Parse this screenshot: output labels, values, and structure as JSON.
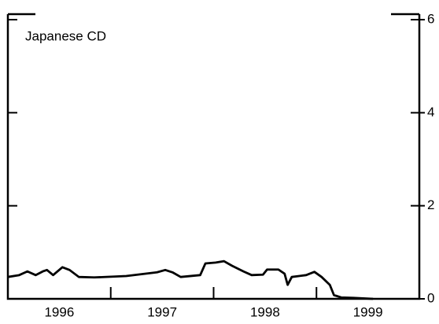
{
  "chart_data": {
    "type": "line",
    "annotation": "Japanese CD",
    "x": [
      1996.0,
      1996.11,
      1996.19,
      1996.27,
      1996.34,
      1996.38,
      1996.44,
      1996.53,
      1996.6,
      1996.69,
      1996.84,
      1997.15,
      1997.45,
      1997.53,
      1997.6,
      1997.68,
      1997.87,
      1997.92,
      1998.02,
      1998.1,
      1998.18,
      1998.29,
      1998.37,
      1998.48,
      1998.52,
      1998.63,
      1998.69,
      1998.72,
      1998.76,
      1998.9,
      1998.98,
      1999.05,
      1999.13,
      1999.17,
      1999.24,
      1999.36,
      1999.55
    ],
    "series": [
      {
        "color": "#000000",
        "values": [
          0.47,
          0.51,
          0.59,
          0.51,
          0.59,
          0.62,
          0.51,
          0.68,
          0.62,
          0.47,
          0.46,
          0.49,
          0.57,
          0.62,
          0.57,
          0.47,
          0.51,
          0.76,
          0.78,
          0.81,
          0.71,
          0.59,
          0.51,
          0.52,
          0.63,
          0.63,
          0.54,
          0.3,
          0.47,
          0.51,
          0.58,
          0.47,
          0.3,
          0.08,
          0.03,
          0.02,
          0.0
        ]
      }
    ],
    "xlim": [
      1996,
      2000
    ],
    "xticks": [
      1997,
      1998,
      1999
    ],
    "year_labels": [
      {
        "value": 1996.5,
        "label": "1996"
      },
      {
        "value": 1997.5,
        "label": "1997"
      },
      {
        "value": 1998.5,
        "label": "1998"
      },
      {
        "value": 1999.5,
        "label": "1999"
      }
    ],
    "ylim": [
      0,
      6
    ],
    "yticks": [
      0,
      2,
      4,
      6
    ]
  }
}
